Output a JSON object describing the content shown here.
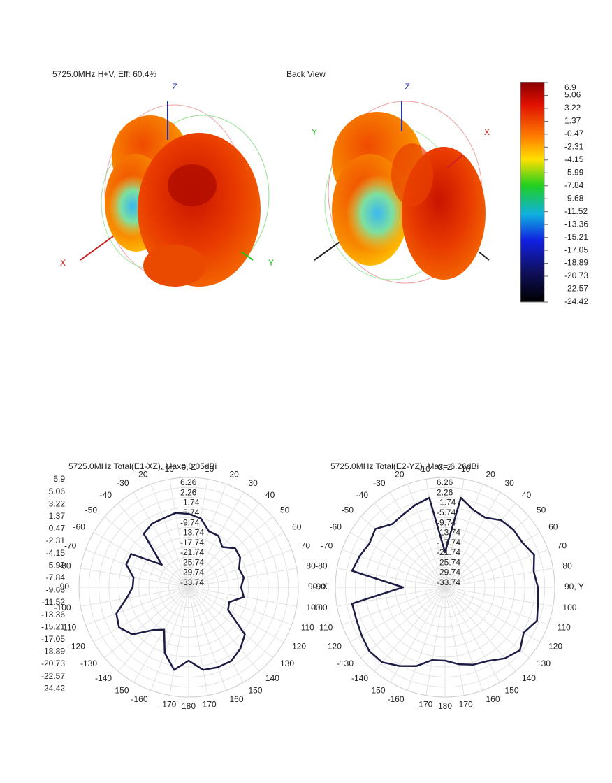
{
  "views": [
    {
      "title": "5725.0MHz H+V, Eff: 60.4%",
      "axes": {
        "z": "Z",
        "x": "X",
        "y": "Y"
      }
    },
    {
      "title": "Back View",
      "axes": {
        "z": "Z",
        "x": "X",
        "y": "Y"
      }
    }
  ],
  "colorbar": {
    "lim": [
      -24.42,
      6.9
    ],
    "ticks": [
      6.9,
      5.06,
      3.22,
      1.37,
      -0.47,
      -2.31,
      -4.15,
      -5.99,
      -7.84,
      -9.68,
      -11.52,
      -13.36,
      -15.21,
      -17.05,
      -18.89,
      -20.73,
      -22.57,
      -24.42
    ]
  },
  "chart_data": [
    {
      "type": "polar",
      "title": "5725.0MHz Total(E1-XZ), Max= 0.05dBi",
      "color": "#1c1c45",
      "grid": true,
      "theta": [
        -170,
        -160,
        -150,
        -140,
        -130,
        -120,
        -110,
        -100,
        -90,
        -80,
        -70,
        -60,
        -50,
        -40,
        -30,
        -20,
        -10,
        0,
        10,
        20,
        30,
        40,
        50,
        60,
        70,
        80,
        90,
        100,
        110,
        120,
        130,
        140,
        150,
        160,
        170,
        180
      ],
      "values": [
        -4.1,
        -9.7,
        -18.1,
        -15.3,
        -8.3,
        -5.5,
        -6.9,
        -12.5,
        -15.3,
        -15.3,
        -11.1,
        -11.1,
        -23.7,
        -9.7,
        -8.3,
        -8.3,
        -7.5,
        -8.3,
        -9.7,
        -13.9,
        -13.9,
        -16.7,
        -13.4,
        -13.9,
        -16.2,
        -15.3,
        -16.7,
        -15.3,
        -20.4,
        -19.5,
        -8.3,
        -5.5,
        -3.6,
        -3.6,
        -4.1,
        -8.3
      ],
      "rlim": [
        -37.74,
        6.26
      ],
      "rticks": [
        6.26,
        2.26,
        -1.74,
        -5.74,
        -9.74,
        -13.74,
        -17.74,
        -21.74,
        -25.74,
        -29.74,
        -33.74
      ],
      "thetaticks": [
        {
          "value": 0,
          "label": "0, Z"
        },
        10,
        20,
        30,
        40,
        50,
        60,
        70,
        80,
        {
          "value": 90,
          "label": "90, X"
        },
        100,
        110,
        120,
        130,
        140,
        150,
        160,
        170,
        180,
        -170,
        -160,
        -150,
        -140,
        -130,
        -120,
        -110,
        -100,
        -90,
        -80,
        -70,
        -60,
        -50,
        -40,
        -30,
        -20,
        -10
      ]
    },
    {
      "type": "polar",
      "title": "5725.0MHz Total(E2-YZ), Max= 6.26dBi",
      "color": "#1c1c45",
      "grid": true,
      "theta": [
        -170,
        -160,
        -150,
        -140,
        -130,
        -120,
        -110,
        -100,
        -90,
        -80,
        -70,
        -60,
        -50,
        -40,
        -30,
        -20,
        -10,
        0,
        10,
        20,
        30,
        40,
        50,
        60,
        70,
        80,
        90,
        100,
        110,
        120,
        130,
        140,
        150,
        160,
        170,
        180
      ],
      "values": [
        -8.1,
        -4.1,
        -1.3,
        1.5,
        2.0,
        0.9,
        0.1,
        0.1,
        -20.9,
        0.1,
        -1.3,
        -2.7,
        -1.3,
        -4.7,
        -4.1,
        -2.7,
        -1.3,
        -23.7,
        -1.3,
        -4.7,
        -5.5,
        -2.7,
        -1.9,
        -1.9,
        0.3,
        -1.6,
        -0.5,
        0.1,
        1.5,
        -1.3,
        1.5,
        -0.5,
        -3.6,
        -4.7,
        -6.4,
        -8.3
      ],
      "rlim": [
        -37.74,
        6.26
      ],
      "rticks": [
        6.26,
        2.26,
        -1.74,
        -5.74,
        -9.74,
        -13.74,
        -17.74,
        -21.74,
        -25.74,
        -29.74,
        -33.74
      ],
      "thetaticks": [
        {
          "value": 0,
          "label": "0, Z"
        },
        10,
        20,
        30,
        40,
        50,
        60,
        70,
        80,
        {
          "value": 90,
          "label": "90, Y"
        },
        100,
        110,
        120,
        130,
        140,
        150,
        160,
        170,
        180,
        -170,
        -160,
        -150,
        -140,
        -130,
        -120,
        -110,
        -100,
        -90,
        -80,
        -70,
        -60,
        -50,
        -40,
        -30,
        -20,
        -10
      ]
    }
  ]
}
